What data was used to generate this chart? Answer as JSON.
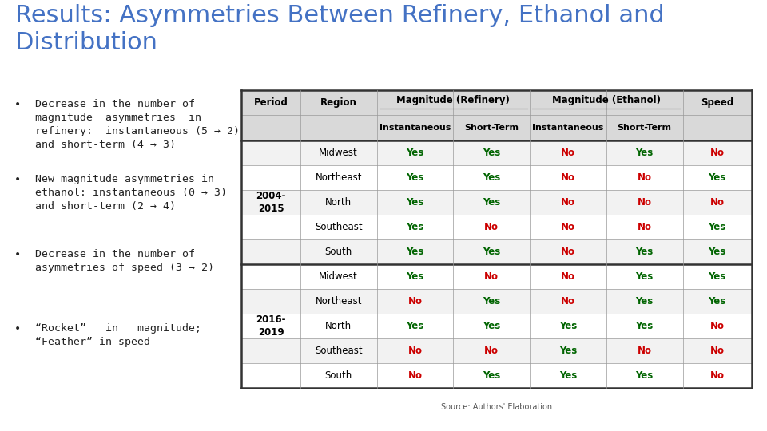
{
  "title_line1": "Results: Asymmetries Between Refinery, Ethanol and",
  "title_line2": "Distribution",
  "title_color": "#4472C4",
  "title_fontsize": 22,
  "background_color": "#FFFFFF",
  "footer_color": "#808080",
  "bullet_points": [
    "Decrease in the number of\nmagnitude  asymmetries  in\nrefinery:  instantaneous (5 → 2)\nand short-term (4 → 3)",
    "New magnitude asymmetries in\nethanol: instantaneous (0 → 3)\nand short-term (2 → 4)",
    "Decrease in the number of\nasymmetries of speed (3 → 2)",
    "“Rocket”   in   magnitude;\n“Feather” in speed"
  ],
  "bullet_fontsize": 9.5,
  "bullet_color": "#222222",
  "table": {
    "rows": [
      [
        "2004-\n2015",
        "Midwest",
        "Yes",
        "Yes",
        "No",
        "Yes",
        "No"
      ],
      [
        "",
        "Northeast",
        "Yes",
        "Yes",
        "No",
        "No",
        "Yes"
      ],
      [
        "",
        "North",
        "Yes",
        "Yes",
        "No",
        "No",
        "No"
      ],
      [
        "",
        "Southeast",
        "Yes",
        "No",
        "No",
        "No",
        "Yes"
      ],
      [
        "",
        "South",
        "Yes",
        "Yes",
        "No",
        "Yes",
        "Yes"
      ],
      [
        "2016-\n2019",
        "Midwest",
        "Yes",
        "No",
        "No",
        "Yes",
        "Yes"
      ],
      [
        "",
        "Northeast",
        "No",
        "Yes",
        "No",
        "Yes",
        "Yes"
      ],
      [
        "",
        "North",
        "Yes",
        "Yes",
        "Yes",
        "Yes",
        "No"
      ],
      [
        "",
        "Southeast",
        "No",
        "No",
        "Yes",
        "No",
        "No"
      ],
      [
        "",
        "South",
        "No",
        "Yes",
        "Yes",
        "Yes",
        "No"
      ]
    ],
    "yes_color": "#006400",
    "no_color": "#CC0000",
    "header_bg": "#D9D9D9",
    "row_bg_even": "#F2F2F2",
    "row_bg_odd": "#FFFFFF",
    "border_color": "#999999",
    "thick_border_color": "#333333",
    "source_text": "Source: Authors' Elaboration",
    "header_fontsize": 8.5,
    "cell_fontsize": 8.5
  }
}
